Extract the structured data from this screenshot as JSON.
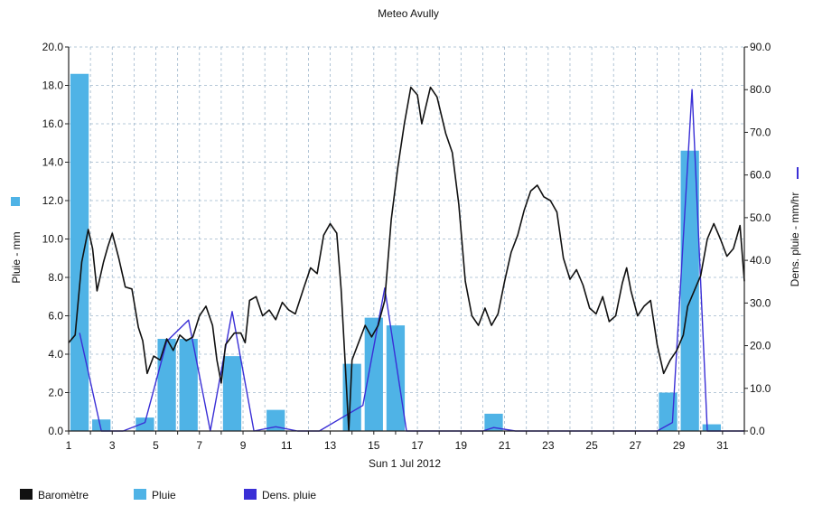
{
  "chart_data": {
    "type": "bar",
    "title": "Meteo  Avully",
    "xlabel": "Sun 1 Jul 2012",
    "ylabel_left": "Pluie - mm",
    "ylabel_right": "Dens. pluie - mm/hr",
    "x_ticks": [
      "1",
      "3",
      "5",
      "7",
      "9",
      "11",
      "13",
      "15",
      "17",
      "19",
      "21",
      "23",
      "25",
      "27",
      "29",
      "31"
    ],
    "x_range": [
      1,
      32
    ],
    "ylim_left": [
      0,
      20
    ],
    "ylim_right": [
      0,
      90
    ],
    "y_ticks_left": [
      "0.0",
      "2.0",
      "4.0",
      "6.0",
      "8.0",
      "10.0",
      "12.0",
      "14.0",
      "16.0",
      "18.0",
      "20.0"
    ],
    "y_ticks_right": [
      "0.0",
      "10.0",
      "20.0",
      "30.0",
      "40.0",
      "50.0",
      "60.0",
      "70.0",
      "80.0",
      "90.0"
    ],
    "grid": true,
    "legend_placement": "bottom-left",
    "legend": [
      {
        "label": "Baromètre",
        "color": "#111111"
      },
      {
        "label": "Pluie",
        "color": "#4fb3e6"
      },
      {
        "label": "Dens. pluie",
        "color": "#3a2fd6"
      }
    ],
    "series": [
      {
        "name": "Pluie",
        "kind": "bar",
        "axis": "left",
        "color": "#4fb3e6",
        "x": [
          1.5,
          2.5,
          4.5,
          5.5,
          6.5,
          8.5,
          10.5,
          14.0,
          15.0,
          16.0,
          20.5,
          28.5,
          29.5,
          30.5
        ],
        "values": [
          18.6,
          0.6,
          0.7,
          4.8,
          4.8,
          3.9,
          1.1,
          3.5,
          5.9,
          5.5,
          0.9,
          2.0,
          14.6,
          0.35
        ]
      },
      {
        "name": "Dens. pluie",
        "kind": "line",
        "axis": "right",
        "color": "#3a2fd6",
        "points": [
          [
            1.5,
            23
          ],
          [
            2.5,
            0
          ],
          [
            3.5,
            0
          ],
          [
            4.5,
            2
          ],
          [
            5.5,
            21
          ],
          [
            6.5,
            26
          ],
          [
            7.5,
            0
          ],
          [
            8.5,
            28
          ],
          [
            9.5,
            0
          ],
          [
            10.5,
            1
          ],
          [
            11.5,
            0
          ],
          [
            12.5,
            0
          ],
          [
            13.5,
            3
          ],
          [
            14.5,
            6
          ],
          [
            15.5,
            33.5
          ],
          [
            16.5,
            0
          ],
          [
            20,
            0
          ],
          [
            20.5,
            0.8
          ],
          [
            21.5,
            0
          ],
          [
            28,
            0
          ],
          [
            28.7,
            2
          ],
          [
            29.6,
            80
          ],
          [
            30.3,
            0
          ],
          [
            32,
            0
          ]
        ]
      },
      {
        "name": "Baromètre",
        "kind": "line",
        "axis": "left",
        "color": "#111111",
        "points": [
          [
            1.0,
            4.6
          ],
          [
            1.3,
            5.0
          ],
          [
            1.6,
            8.8
          ],
          [
            1.9,
            10.5
          ],
          [
            2.1,
            9.5
          ],
          [
            2.3,
            7.3
          ],
          [
            2.6,
            8.8
          ],
          [
            2.8,
            9.6
          ],
          [
            3.0,
            10.3
          ],
          [
            3.3,
            9.0
          ],
          [
            3.6,
            7.5
          ],
          [
            3.9,
            7.4
          ],
          [
            4.2,
            5.4
          ],
          [
            4.4,
            4.7
          ],
          [
            4.6,
            3.0
          ],
          [
            4.9,
            3.9
          ],
          [
            5.2,
            3.7
          ],
          [
            5.5,
            4.8
          ],
          [
            5.8,
            4.2
          ],
          [
            6.1,
            5.0
          ],
          [
            6.4,
            4.7
          ],
          [
            6.7,
            4.9
          ],
          [
            7.0,
            6.0
          ],
          [
            7.3,
            6.5
          ],
          [
            7.6,
            5.5
          ],
          [
            7.8,
            3.7
          ],
          [
            8.0,
            2.5
          ],
          [
            8.2,
            4.5
          ],
          [
            8.6,
            5.1
          ],
          [
            8.9,
            5.1
          ],
          [
            9.1,
            4.6
          ],
          [
            9.3,
            6.8
          ],
          [
            9.6,
            7.0
          ],
          [
            9.9,
            6.0
          ],
          [
            10.2,
            6.3
          ],
          [
            10.5,
            5.8
          ],
          [
            10.8,
            6.7
          ],
          [
            11.1,
            6.3
          ],
          [
            11.4,
            6.1
          ],
          [
            11.8,
            7.5
          ],
          [
            12.1,
            8.5
          ],
          [
            12.4,
            8.2
          ],
          [
            12.7,
            10.2
          ],
          [
            13.0,
            10.8
          ],
          [
            13.3,
            10.3
          ],
          [
            13.5,
            7.4
          ],
          [
            13.7,
            3.3
          ],
          [
            13.85,
            0.0
          ],
          [
            14.0,
            3.7
          ],
          [
            14.3,
            4.6
          ],
          [
            14.6,
            5.5
          ],
          [
            14.9,
            4.9
          ],
          [
            15.2,
            5.5
          ],
          [
            15.5,
            6.8
          ],
          [
            15.8,
            11.0
          ],
          [
            16.1,
            13.7
          ],
          [
            16.4,
            16.0
          ],
          [
            16.7,
            17.9
          ],
          [
            17.0,
            17.5
          ],
          [
            17.2,
            16.0
          ],
          [
            17.6,
            17.9
          ],
          [
            17.9,
            17.4
          ],
          [
            18.3,
            15.5
          ],
          [
            18.6,
            14.5
          ],
          [
            18.9,
            11.8
          ],
          [
            19.2,
            7.8
          ],
          [
            19.5,
            6.0
          ],
          [
            19.8,
            5.5
          ],
          [
            20.1,
            6.4
          ],
          [
            20.4,
            5.5
          ],
          [
            20.7,
            6.1
          ],
          [
            21.0,
            7.8
          ],
          [
            21.3,
            9.3
          ],
          [
            21.6,
            10.2
          ],
          [
            21.9,
            11.5
          ],
          [
            22.2,
            12.5
          ],
          [
            22.5,
            12.8
          ],
          [
            22.8,
            12.2
          ],
          [
            23.1,
            12.0
          ],
          [
            23.4,
            11.4
          ],
          [
            23.7,
            9.0
          ],
          [
            24.0,
            7.9
          ],
          [
            24.3,
            8.4
          ],
          [
            24.6,
            7.6
          ],
          [
            24.9,
            6.4
          ],
          [
            25.2,
            6.1
          ],
          [
            25.5,
            7.0
          ],
          [
            25.8,
            5.7
          ],
          [
            26.1,
            6.0
          ],
          [
            26.4,
            7.7
          ],
          [
            26.6,
            8.5
          ],
          [
            26.8,
            7.3
          ],
          [
            27.1,
            6.0
          ],
          [
            27.4,
            6.5
          ],
          [
            27.7,
            6.8
          ],
          [
            28.0,
            4.5
          ],
          [
            28.3,
            3.0
          ],
          [
            28.6,
            3.7
          ],
          [
            28.9,
            4.2
          ],
          [
            29.2,
            5.0
          ],
          [
            29.4,
            6.5
          ],
          [
            29.7,
            7.3
          ],
          [
            30.0,
            8.1
          ],
          [
            30.3,
            10.0
          ],
          [
            30.6,
            10.8
          ],
          [
            30.9,
            10.0
          ],
          [
            31.2,
            9.1
          ],
          [
            31.5,
            9.5
          ],
          [
            31.8,
            10.7
          ],
          [
            32.0,
            7.8
          ]
        ]
      }
    ]
  }
}
